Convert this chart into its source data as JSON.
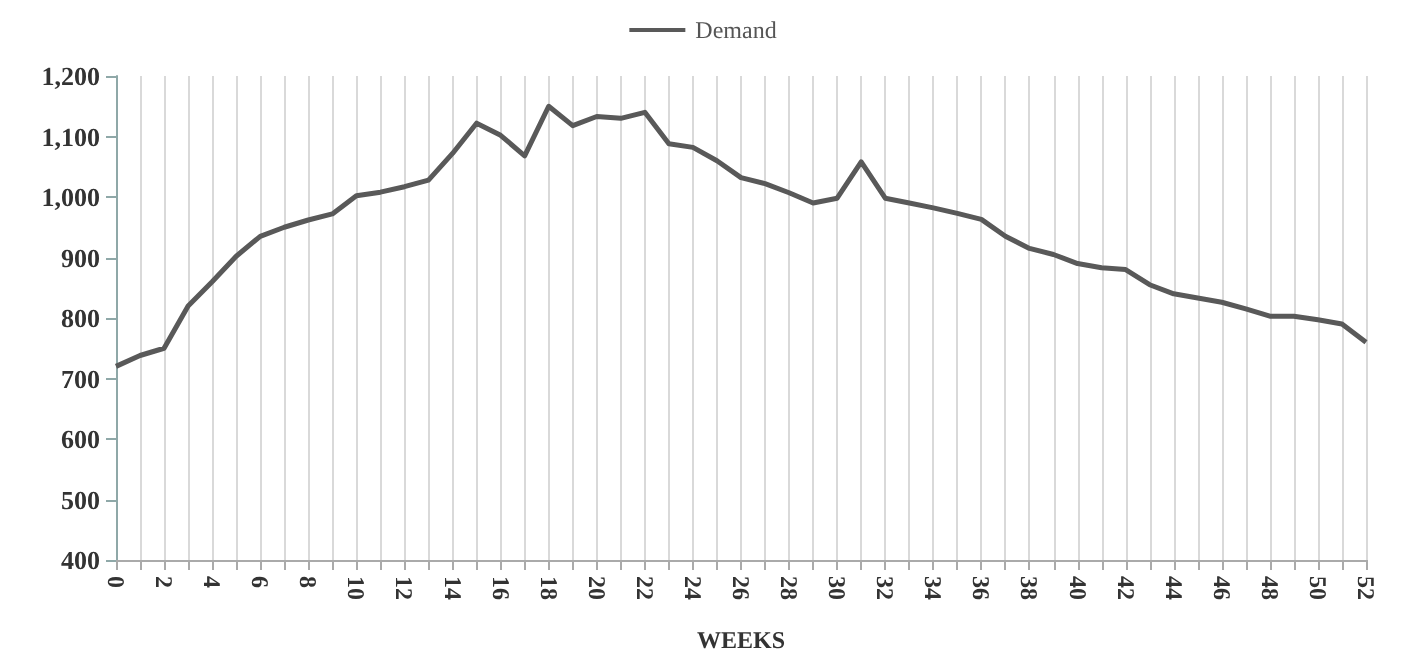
{
  "chart_data": {
    "type": "line",
    "xlabel": "WEEKS",
    "legend": "top",
    "grid": "x",
    "marker": "none",
    "line_style": "solid",
    "xlim": [
      0,
      52
    ],
    "xticks": [
      0,
      {
        "value": 1,
        "label": null
      },
      2,
      {
        "value": 3,
        "label": null
      },
      4,
      {
        "value": 5,
        "label": null
      },
      6,
      {
        "value": 7,
        "label": null
      },
      8,
      {
        "value": 9,
        "label": null
      },
      10,
      {
        "value": 11,
        "label": null
      },
      12,
      {
        "value": 13,
        "label": null
      },
      14,
      {
        "value": 15,
        "label": null
      },
      16,
      {
        "value": 17,
        "label": null
      },
      18,
      {
        "value": 19,
        "label": null
      },
      20,
      {
        "value": 21,
        "label": null
      },
      22,
      {
        "value": 23,
        "label": null
      },
      24,
      {
        "value": 25,
        "label": null
      },
      26,
      {
        "value": 27,
        "label": null
      },
      28,
      {
        "value": 29,
        "label": null
      },
      30,
      {
        "value": 31,
        "label": null
      },
      32,
      {
        "value": 33,
        "label": null
      },
      34,
      {
        "value": 35,
        "label": null
      },
      36,
      {
        "value": 37,
        "label": null
      },
      38,
      {
        "value": 39,
        "label": null
      },
      40,
      {
        "value": 41,
        "label": null
      },
      42,
      {
        "value": 43,
        "label": null
      },
      44,
      {
        "value": 45,
        "label": null
      },
      46,
      {
        "value": 47,
        "label": null
      },
      48,
      {
        "value": 49,
        "label": null
      },
      50,
      {
        "value": 51,
        "label": null
      },
      52
    ],
    "ylim": [
      400,
      1200
    ],
    "yticks": [
      400,
      500,
      600,
      700,
      800,
      900,
      {
        "value": 1000,
        "label": "1,000"
      },
      {
        "value": 1100,
        "label": "1,100"
      },
      {
        "value": 1200,
        "label": "1,200"
      }
    ],
    "x": [
      0,
      1,
      2,
      3,
      4,
      5,
      6,
      7,
      8,
      9,
      10,
      11,
      12,
      13,
      14,
      15,
      16,
      17,
      18,
      19,
      20,
      21,
      22,
      23,
      24,
      25,
      26,
      27,
      28,
      29,
      30,
      31,
      32,
      33,
      34,
      35,
      36,
      37,
      38,
      39,
      40,
      41,
      42,
      43,
      44,
      45,
      46,
      47,
      48,
      49,
      50,
      51,
      52
    ],
    "series": [
      {
        "name": "Demand",
        "color": "#595959",
        "values": [
          720,
          738,
          750,
          820,
          860,
          902,
          935,
          950,
          962,
          972,
          1002,
          1008,
          1017,
          1028,
          1072,
          1122,
          1102,
          1068,
          1150,
          1118,
          1133,
          1130,
          1140,
          1088,
          1082,
          1060,
          1032,
          1022,
          1007,
          990,
          998,
          1058,
          998,
          990,
          982,
          973,
          963,
          935,
          915,
          905,
          890,
          883,
          880,
          855,
          840,
          833,
          826,
          815,
          803,
          803,
          797,
          790,
          760
        ]
      }
    ]
  }
}
